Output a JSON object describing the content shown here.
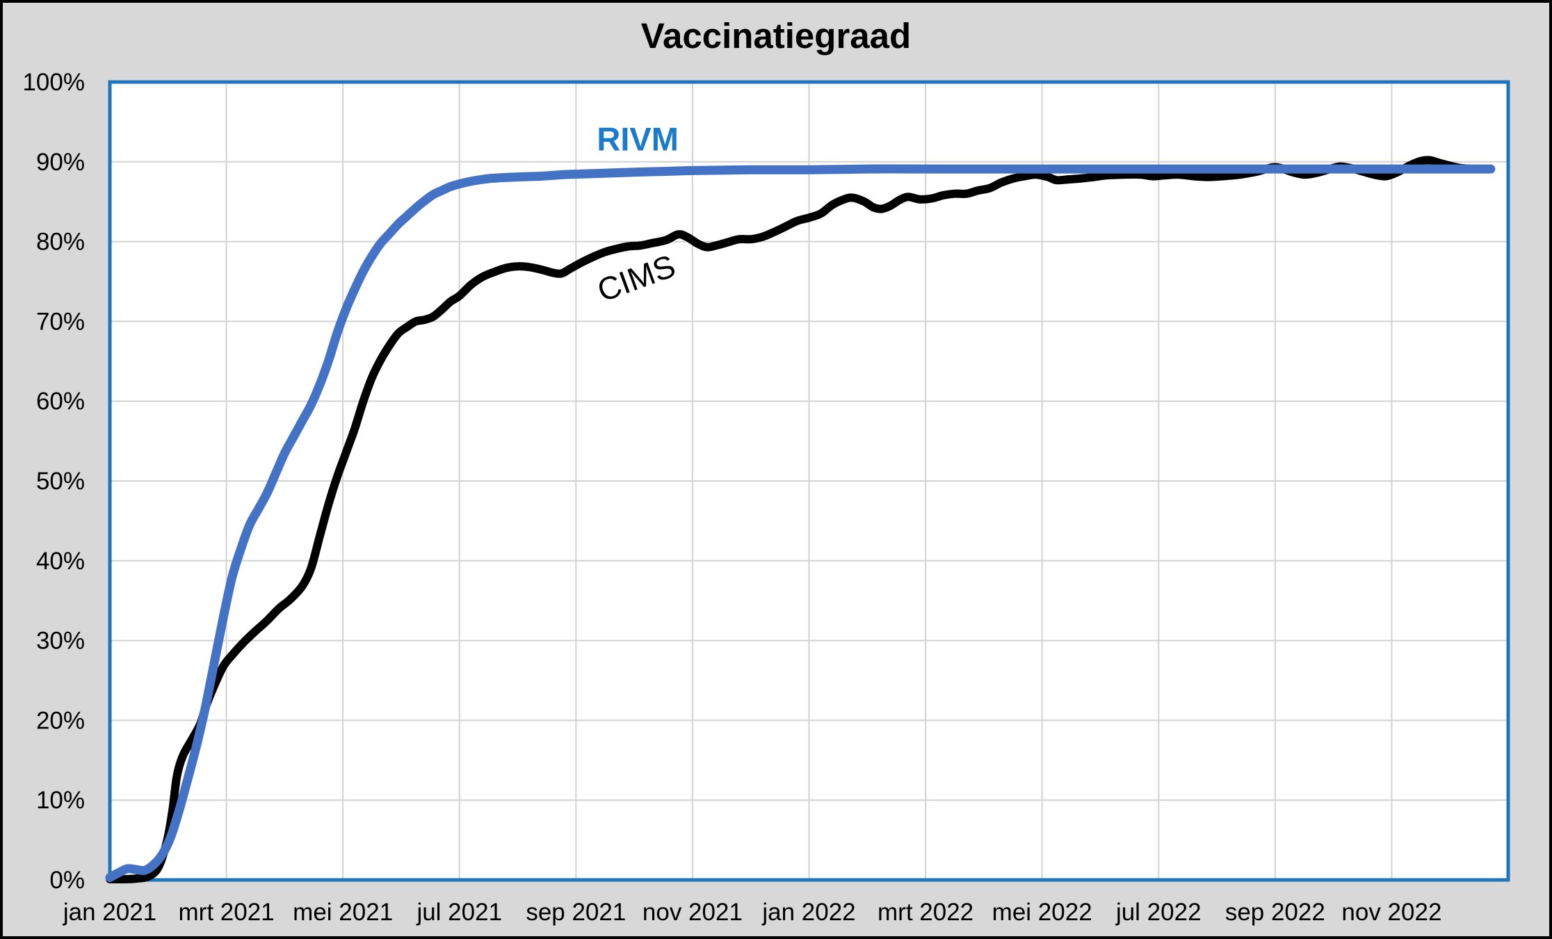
{
  "title": "Vaccinatiegraad",
  "colors": {
    "page_bg": "#d8d8d8",
    "plot_bg": "#ffffff",
    "gridline": "#d2d2d2",
    "plot_frame": "#1b76bd",
    "outer_border": "#000000",
    "rivm_line": "#4472c4",
    "rivm_label": "#1b7ac9",
    "cims_line": "#000000"
  },
  "chart_data": {
    "type": "line",
    "title": "Vaccinatiegraad",
    "xlabel": "",
    "ylabel": "",
    "grid": "on",
    "legend_position": "inline-annotations",
    "x_axis": {
      "unit": "months since jan 2021",
      "range_months": [
        0,
        24
      ],
      "tick_months": [
        0,
        2,
        4,
        6,
        8,
        10,
        12,
        14,
        16,
        18,
        20,
        22
      ],
      "tick_labels": [
        "jan 2021",
        "mrt 2021",
        "mei 2021",
        "jul 2021",
        "sep 2021",
        "nov 2021",
        "jan 2022",
        "mrt 2022",
        "mei 2022",
        "jul 2022",
        "sep 2022",
        "nov 2022"
      ],
      "gridline_every_months": 2
    },
    "y_axis": {
      "range": [
        0,
        100
      ],
      "tick_values": [
        0,
        10,
        20,
        30,
        40,
        50,
        60,
        70,
        80,
        90,
        100
      ],
      "tick_labels": [
        "0%",
        "10%",
        "20%",
        "30%",
        "40%",
        "50%",
        "60%",
        "70%",
        "80%",
        "90%",
        "100%"
      ],
      "gridline_every_percent": 10
    },
    "annotations": [
      {
        "text": "RIVM",
        "month": 9.06,
        "percent": 92.9,
        "rotation_deg": 0
      },
      {
        "text": "CIMS",
        "month": 9.03,
        "percent": 75.4,
        "rotation_deg": -20
      }
    ],
    "series": [
      {
        "name": "CIMS",
        "color": "#000000",
        "stroke_width": 12,
        "points_month_percent": [
          [
            0,
            0.1
          ],
          [
            0.3,
            0.1
          ],
          [
            0.5,
            0.2
          ],
          [
            0.65,
            0.4
          ],
          [
            0.8,
            1.2
          ],
          [
            0.9,
            2.8
          ],
          [
            1,
            5.5
          ],
          [
            1.08,
            9
          ],
          [
            1.15,
            13
          ],
          [
            1.25,
            15.5
          ],
          [
            1.4,
            17.5
          ],
          [
            1.55,
            19.5
          ],
          [
            1.65,
            21.8
          ],
          [
            1.8,
            24.5
          ],
          [
            1.95,
            26.8
          ],
          [
            2.1,
            28.2
          ],
          [
            2.3,
            29.8
          ],
          [
            2.5,
            31.2
          ],
          [
            2.7,
            32.5
          ],
          [
            2.9,
            34
          ],
          [
            3.1,
            35.2
          ],
          [
            3.3,
            36.8
          ],
          [
            3.45,
            39
          ],
          [
            3.6,
            43
          ],
          [
            3.75,
            47
          ],
          [
            3.9,
            50.5
          ],
          [
            4.05,
            53.5
          ],
          [
            4.2,
            56.5
          ],
          [
            4.35,
            60
          ],
          [
            4.5,
            63
          ],
          [
            4.65,
            65.2
          ],
          [
            4.8,
            67
          ],
          [
            4.95,
            68.5
          ],
          [
            5.1,
            69.3
          ],
          [
            5.25,
            70
          ],
          [
            5.4,
            70.2
          ],
          [
            5.55,
            70.6
          ],
          [
            5.7,
            71.5
          ],
          [
            5.85,
            72.5
          ],
          [
            6,
            73.2
          ],
          [
            6.2,
            74.6
          ],
          [
            6.4,
            75.6
          ],
          [
            6.6,
            76.2
          ],
          [
            6.8,
            76.7
          ],
          [
            7,
            76.9
          ],
          [
            7.2,
            76.8
          ],
          [
            7.4,
            76.5
          ],
          [
            7.6,
            76.1
          ],
          [
            7.75,
            76
          ],
          [
            7.9,
            76.6
          ],
          [
            8.1,
            77.4
          ],
          [
            8.3,
            78.1
          ],
          [
            8.5,
            78.7
          ],
          [
            8.7,
            79.1
          ],
          [
            8.9,
            79.4
          ],
          [
            9.1,
            79.5
          ],
          [
            9.3,
            79.8
          ],
          [
            9.55,
            80.2
          ],
          [
            9.75,
            80.9
          ],
          [
            9.9,
            80.6
          ],
          [
            10.1,
            79.7
          ],
          [
            10.25,
            79.3
          ],
          [
            10.4,
            79.5
          ],
          [
            10.6,
            79.9
          ],
          [
            10.8,
            80.3
          ],
          [
            11,
            80.3
          ],
          [
            11.2,
            80.6
          ],
          [
            11.4,
            81.2
          ],
          [
            11.6,
            81.9
          ],
          [
            11.8,
            82.6
          ],
          [
            12,
            83
          ],
          [
            12.2,
            83.5
          ],
          [
            12.4,
            84.6
          ],
          [
            12.6,
            85.3
          ],
          [
            12.75,
            85.5
          ],
          [
            12.95,
            85
          ],
          [
            13.1,
            84.3
          ],
          [
            13.25,
            84.1
          ],
          [
            13.4,
            84.5
          ],
          [
            13.55,
            85.2
          ],
          [
            13.7,
            85.6
          ],
          [
            13.9,
            85.3
          ],
          [
            14.1,
            85.4
          ],
          [
            14.3,
            85.8
          ],
          [
            14.5,
            86
          ],
          [
            14.7,
            86
          ],
          [
            14.9,
            86.4
          ],
          [
            15.1,
            86.7
          ],
          [
            15.3,
            87.4
          ],
          [
            15.5,
            87.9
          ],
          [
            15.7,
            88.2
          ],
          [
            15.9,
            88.4
          ],
          [
            16.1,
            88.1
          ],
          [
            16.25,
            87.7
          ],
          [
            16.45,
            87.8
          ],
          [
            16.65,
            87.9
          ],
          [
            16.9,
            88.1
          ],
          [
            17.1,
            88.3
          ],
          [
            17.4,
            88.4
          ],
          [
            17.7,
            88.4
          ],
          [
            17.9,
            88.2
          ],
          [
            18.1,
            88.3
          ],
          [
            18.35,
            88.4
          ],
          [
            18.6,
            88.2
          ],
          [
            18.85,
            88.1
          ],
          [
            19.1,
            88.2
          ],
          [
            19.4,
            88.4
          ],
          [
            19.7,
            88.8
          ],
          [
            19.95,
            89.3
          ],
          [
            20.1,
            89.2
          ],
          [
            20.3,
            88.7
          ],
          [
            20.5,
            88.4
          ],
          [
            20.7,
            88.6
          ],
          [
            20.9,
            89
          ],
          [
            21.1,
            89.4
          ],
          [
            21.3,
            89.2
          ],
          [
            21.5,
            88.8
          ],
          [
            21.7,
            88.4
          ],
          [
            21.9,
            88.2
          ],
          [
            22.1,
            88.7
          ],
          [
            22.3,
            89.5
          ],
          [
            22.5,
            90.1
          ],
          [
            22.65,
            90.2
          ],
          [
            22.8,
            89.9
          ],
          [
            23,
            89.5
          ],
          [
            23.2,
            89.2
          ],
          [
            23.45,
            89.1
          ],
          [
            23.7,
            89.1
          ]
        ]
      },
      {
        "name": "RIVM",
        "color": "#4472c4",
        "stroke_width": 13,
        "points_month_percent": [
          [
            0,
            0.3
          ],
          [
            0.15,
            0.9
          ],
          [
            0.3,
            1.4
          ],
          [
            0.45,
            1.3
          ],
          [
            0.6,
            1.2
          ],
          [
            0.75,
            1.9
          ],
          [
            0.9,
            3.2
          ],
          [
            1.05,
            5.5
          ],
          [
            1.2,
            9
          ],
          [
            1.35,
            13
          ],
          [
            1.5,
            17.2
          ],
          [
            1.65,
            22
          ],
          [
            1.8,
            27.5
          ],
          [
            1.95,
            33
          ],
          [
            2.1,
            38
          ],
          [
            2.25,
            41.5
          ],
          [
            2.4,
            44.5
          ],
          [
            2.55,
            46.5
          ],
          [
            2.7,
            48.5
          ],
          [
            2.85,
            51
          ],
          [
            3,
            53.5
          ],
          [
            3.15,
            55.5
          ],
          [
            3.3,
            57.5
          ],
          [
            3.45,
            59.5
          ],
          [
            3.6,
            62
          ],
          [
            3.75,
            65
          ],
          [
            3.9,
            68.5
          ],
          [
            4.05,
            71.5
          ],
          [
            4.2,
            74
          ],
          [
            4.35,
            76.3
          ],
          [
            4.5,
            78.2
          ],
          [
            4.65,
            79.8
          ],
          [
            4.8,
            81
          ],
          [
            4.95,
            82.2
          ],
          [
            5.1,
            83.2
          ],
          [
            5.25,
            84.2
          ],
          [
            5.4,
            85.1
          ],
          [
            5.55,
            85.9
          ],
          [
            5.7,
            86.4
          ],
          [
            5.85,
            86.9
          ],
          [
            6.1,
            87.4
          ],
          [
            6.4,
            87.8
          ],
          [
            6.7,
            88
          ],
          [
            7,
            88.1
          ],
          [
            7.4,
            88.2
          ],
          [
            7.8,
            88.4
          ],
          [
            8.2,
            88.5
          ],
          [
            8.6,
            88.6
          ],
          [
            9,
            88.7
          ],
          [
            9.5,
            88.8
          ],
          [
            10,
            88.9
          ],
          [
            11,
            89
          ],
          [
            12,
            89
          ],
          [
            13,
            89.1
          ],
          [
            14,
            89.1
          ],
          [
            15,
            89.1
          ],
          [
            16,
            89.1
          ],
          [
            17,
            89.1
          ],
          [
            18,
            89.1
          ],
          [
            19,
            89.1
          ],
          [
            20,
            89.1
          ],
          [
            21,
            89.1
          ],
          [
            22,
            89.1
          ],
          [
            23,
            89.1
          ],
          [
            23.7,
            89.1
          ]
        ]
      }
    ]
  }
}
